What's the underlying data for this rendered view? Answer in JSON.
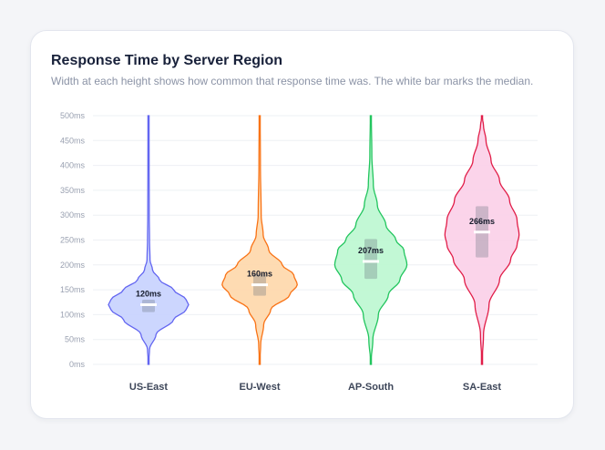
{
  "title": "Response Time by Server Region",
  "subtitle": "Width at each height shows how common that response time was. The white bar marks the median.",
  "chart_data": {
    "type": "violin",
    "title": "Response Time by Server Region",
    "subtitle": "Width at each height shows how common that response time was. The white bar marks the median.",
    "xlabel": "",
    "ylabel": "",
    "ylim": [
      0,
      500
    ],
    "yticks": [
      0,
      50,
      100,
      150,
      200,
      250,
      300,
      350,
      400,
      450,
      500
    ],
    "ytick_labels": [
      "0ms",
      "50ms",
      "100ms",
      "150ms",
      "200ms",
      "250ms",
      "300ms",
      "350ms",
      "400ms",
      "450ms",
      "500ms"
    ],
    "grid": true,
    "legend": "none",
    "categories": [
      "US-East",
      "EU-West",
      "AP-South",
      "SA-East"
    ],
    "series": [
      {
        "category": "US-East",
        "median": 120,
        "median_label": "120ms",
        "q1": 105,
        "q3": 130,
        "range": [
          0,
          500
        ],
        "density": [
          [
            0,
            0.0
          ],
          [
            30,
            0.02
          ],
          [
            60,
            0.15
          ],
          [
            90,
            0.5
          ],
          [
            110,
            0.75
          ],
          [
            120,
            0.8
          ],
          [
            130,
            0.75
          ],
          [
            150,
            0.5
          ],
          [
            170,
            0.22
          ],
          [
            190,
            0.08
          ],
          [
            210,
            0.03
          ],
          [
            250,
            0.02
          ],
          [
            300,
            0.015
          ],
          [
            400,
            0.012
          ],
          [
            500,
            0.01
          ]
        ],
        "color": "#6366f1",
        "fill": "#c7d2fe"
      },
      {
        "category": "EU-West",
        "median": 160,
        "median_label": "160ms",
        "q1": 138,
        "q3": 182,
        "range": [
          0,
          500
        ],
        "density": [
          [
            0,
            0.0
          ],
          [
            40,
            0.02
          ],
          [
            80,
            0.08
          ],
          [
            110,
            0.22
          ],
          [
            140,
            0.6
          ],
          [
            160,
            0.75
          ],
          [
            180,
            0.68
          ],
          [
            200,
            0.45
          ],
          [
            230,
            0.18
          ],
          [
            260,
            0.07
          ],
          [
            300,
            0.03
          ],
          [
            400,
            0.015
          ],
          [
            500,
            0.01
          ]
        ],
        "color": "#f97316",
        "fill": "#fed7aa"
      },
      {
        "category": "AP-South",
        "median": 207,
        "median_label": "207ms",
        "q1": 172,
        "q3": 252,
        "range": [
          0,
          500
        ],
        "density": [
          [
            0,
            0.0
          ],
          [
            50,
            0.04
          ],
          [
            100,
            0.15
          ],
          [
            140,
            0.35
          ],
          [
            170,
            0.58
          ],
          [
            200,
            0.72
          ],
          [
            230,
            0.66
          ],
          [
            250,
            0.5
          ],
          [
            280,
            0.3
          ],
          [
            320,
            0.13
          ],
          [
            360,
            0.05
          ],
          [
            420,
            0.02
          ],
          [
            500,
            0.01
          ]
        ],
        "color": "#22c55e",
        "fill": "#bbf7d0"
      },
      {
        "category": "SA-East",
        "median": 266,
        "median_label": "266ms",
        "q1": 215,
        "q3": 318,
        "range": [
          0,
          500
        ],
        "density": [
          [
            0,
            0.0
          ],
          [
            60,
            0.03
          ],
          [
            120,
            0.14
          ],
          [
            170,
            0.35
          ],
          [
            210,
            0.57
          ],
          [
            240,
            0.7
          ],
          [
            260,
            0.74
          ],
          [
            290,
            0.7
          ],
          [
            330,
            0.55
          ],
          [
            370,
            0.35
          ],
          [
            410,
            0.18
          ],
          [
            450,
            0.08
          ],
          [
            480,
            0.03
          ],
          [
            500,
            0.0
          ]
        ],
        "color": "#e11d48",
        "fill": "#fbcfe8"
      }
    ]
  }
}
